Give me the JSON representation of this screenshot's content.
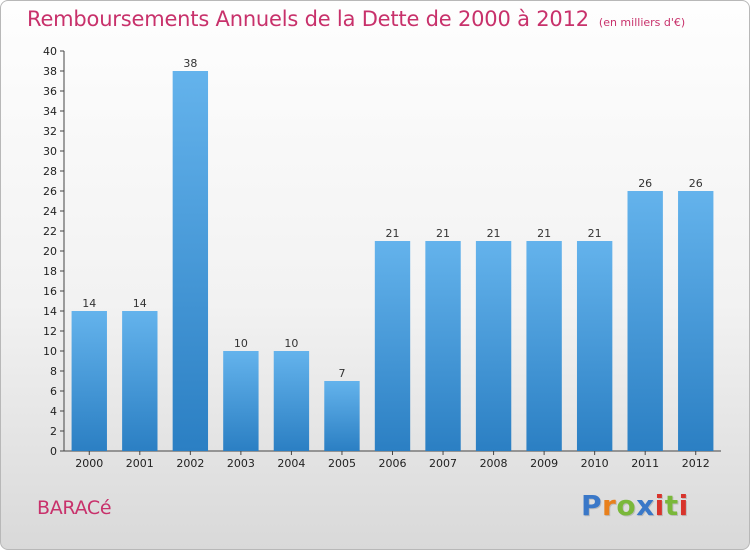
{
  "title": "Remboursements Annuels de la Dette de 2000 à 2012",
  "unit": "(en milliers d'€)",
  "commune": "BARACé",
  "logo_text": "Proxiti",
  "colors": {
    "title": "#c8316b",
    "bar_light": "#64b3ec",
    "bar_dark": "#2b7fc3",
    "logo": [
      "#3a78c8",
      "#e8801c",
      "#7ab83a",
      "#3a78c8",
      "#d8342c",
      "#7ab83a",
      "#d8342c"
    ]
  },
  "chart_data": {
    "type": "bar",
    "categories": [
      "2000",
      "2001",
      "2002",
      "2003",
      "2004",
      "2005",
      "2006",
      "2007",
      "2008",
      "2009",
      "2010",
      "2011",
      "2012"
    ],
    "values": [
      14,
      14,
      38,
      10,
      10,
      7,
      21,
      21,
      21,
      21,
      21,
      26,
      26
    ],
    "ylim": [
      0,
      40
    ],
    "ytick_step": 2,
    "grid": false,
    "xlabel": "",
    "ylabel": ""
  }
}
